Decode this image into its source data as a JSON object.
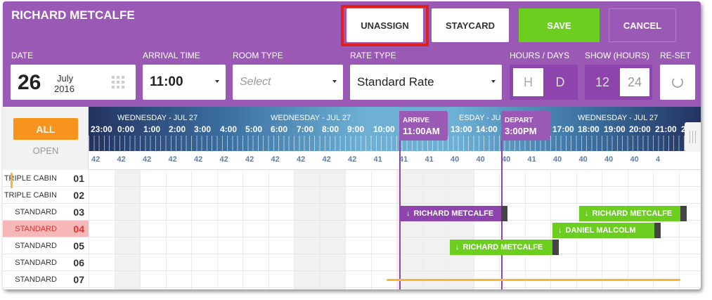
{
  "guest_name": "RICHARD METCALFE",
  "actions": {
    "unassign": "UNASSIGN",
    "staycard": "STAYCARD",
    "save": "SAVE",
    "cancel": "CANCEL"
  },
  "fields": {
    "date_label": "DATE",
    "date_day": "26",
    "date_month": "July",
    "date_year": "2016",
    "arrival_label": "ARRIVAL TIME",
    "arrival_value": "11:00",
    "room_type_label": "ROOM TYPE",
    "room_type_placeholder": "Select",
    "rate_type_label": "RATE TYPE",
    "rate_type_value": "Standard Rate",
    "hours_days_label": "HOURS / DAYS",
    "hours_option": "H",
    "days_option": "D",
    "show_label": "SHOW (HOURS)",
    "show_12": "12",
    "show_24": "24",
    "reset_label": "RE-SET"
  },
  "filter": {
    "all": "ALL",
    "open": "OPEN"
  },
  "timeline": {
    "date_labels": [
      "WEDNESDAY - JUL 27",
      "WEDNESDAY - JUL 27",
      "ESDAY - JUL 27",
      "WEDNESDAY - JUL 27"
    ],
    "hours": [
      "23:00",
      "0:00",
      "1:00",
      "2:00",
      "3:00",
      "4:00",
      "5:00",
      "6:00",
      "7:00",
      "8:00",
      "9:00",
      "10:00",
      "13:00",
      "14:00",
      "17:00",
      "18:00",
      "19:00",
      "20:00",
      "21:00",
      "2"
    ],
    "occupancy": [
      "42",
      "42",
      "42",
      "42",
      "42",
      "42",
      "42",
      "42",
      "42",
      "42",
      "42",
      "41",
      "41",
      "41",
      "40",
      "40",
      "40",
      "41",
      "40",
      "40",
      "40",
      "40",
      "4"
    ],
    "arrive_label": "ARRIVE",
    "arrive_time": "11:00AM",
    "depart_label": "DEPART",
    "depart_time": "3:00PM"
  },
  "rooms": [
    {
      "type": "TRIPLE CABIN",
      "number": "01"
    },
    {
      "type": "TRIPLE CABIN",
      "number": "02"
    },
    {
      "type": "STANDARD",
      "number": "03"
    },
    {
      "type": "STANDARD",
      "number": "04"
    },
    {
      "type": "STANDARD",
      "number": "05"
    },
    {
      "type": "STANDARD",
      "number": "06"
    },
    {
      "type": "STANDARD",
      "number": "07"
    }
  ],
  "reservations": [
    {
      "guest": "RICHARD METCALFE"
    },
    {
      "guest": "RICHARD METCALFE"
    },
    {
      "guest": "DANIEL MALCOLM"
    },
    {
      "guest": "RICHARD METCALFE"
    }
  ],
  "colors": {
    "header": "#9b59b6",
    "save": "#6ccf1f",
    "all_filter": "#f7941d",
    "highlight_row": "#f5b7b7",
    "unassign_outline": "#e0201b"
  }
}
